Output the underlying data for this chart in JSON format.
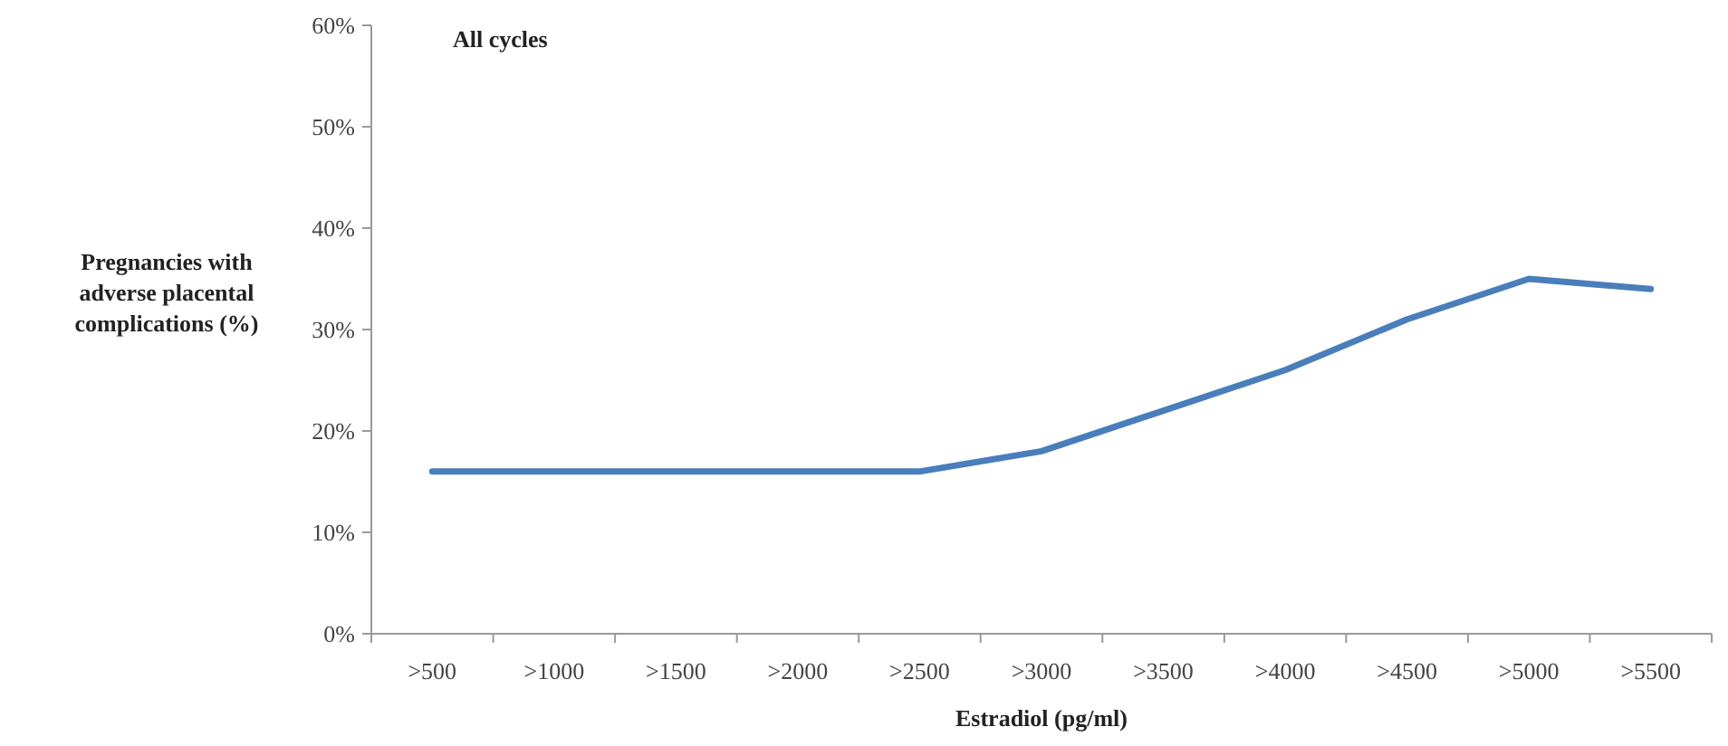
{
  "chart_data": {
    "type": "line",
    "title": "All cycles",
    "xlabel": "Estradiol (pg/ml)",
    "ylabel": "Pregnancies with adverse placental complications (%)",
    "categories": [
      ">500",
      ">1000",
      ">1500",
      ">2000",
      ">2500",
      ">3000",
      ">3500",
      ">4000",
      ">4500",
      ">5000",
      ">5500"
    ],
    "series": [
      {
        "color": "#4a7ebb",
        "values": [
          16,
          16,
          16,
          16,
          16,
          18,
          22,
          26,
          31,
          35,
          34
        ]
      }
    ],
    "ylim": [
      0,
      60
    ],
    "yticks": [
      {
        "value": 0,
        "label": "0%"
      },
      {
        "value": 10,
        "label": "10%"
      },
      {
        "value": 20,
        "label": "20%"
      },
      {
        "value": 30,
        "label": "30%"
      },
      {
        "value": 40,
        "label": "40%"
      },
      {
        "value": 50,
        "label": "50%"
      },
      {
        "value": 60,
        "label": "60%"
      }
    ],
    "grid": false,
    "marker": "none",
    "line_style": "solid"
  }
}
